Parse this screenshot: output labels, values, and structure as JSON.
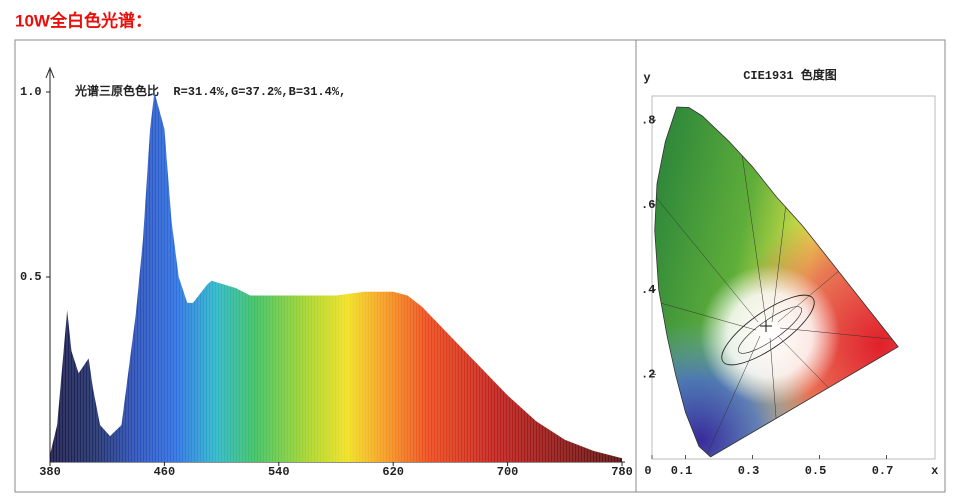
{
  "title": "10W全白色光谱：",
  "chart_data": [
    {
      "type": "area",
      "annotation": "光谱三原色色比  R=31.4%,G=37.2%,B=31.4%,",
      "x": [
        380,
        385,
        392,
        395,
        400,
        407,
        410,
        415,
        422,
        430,
        440,
        445,
        450,
        453,
        460,
        465,
        470,
        476,
        480,
        490,
        493,
        510,
        520,
        540,
        560,
        580,
        600,
        620,
        630,
        640,
        650,
        660,
        670,
        680,
        700,
        720,
        740,
        760,
        780
      ],
      "values": [
        0.02,
        0.1,
        0.41,
        0.3,
        0.24,
        0.28,
        0.2,
        0.1,
        0.07,
        0.1,
        0.4,
        0.6,
        0.9,
        1.0,
        0.9,
        0.65,
        0.5,
        0.43,
        0.43,
        0.48,
        0.49,
        0.47,
        0.45,
        0.45,
        0.45,
        0.45,
        0.46,
        0.46,
        0.45,
        0.42,
        0.38,
        0.34,
        0.3,
        0.26,
        0.18,
        0.11,
        0.06,
        0.03,
        0.01
      ],
      "xlim": [
        380,
        780
      ],
      "ylim": [
        0,
        1.05
      ],
      "xticks": [
        380,
        460,
        540,
        620,
        700,
        780
      ],
      "yticks": [
        {
          "value": 0.5,
          "label": "0.5"
        },
        {
          "value": 1,
          "label": "1.0"
        }
      ]
    },
    {
      "type": "chromaticity",
      "title": "CIE1931 色度图",
      "x_label": "x",
      "y_label": "y",
      "xlim": [
        0,
        0.85
      ],
      "ylim": [
        0,
        0.86
      ],
      "xticks": [
        0,
        0.1,
        0.3,
        0.5,
        0.7
      ],
      "yticks": [
        {
          "value": 0.2,
          "label": ".2"
        },
        {
          "value": 0.4,
          "label": ".4"
        },
        {
          "value": 0.6,
          "label": ".6"
        },
        {
          "value": 0.8,
          "label": ".8"
        }
      ]
    }
  ]
}
